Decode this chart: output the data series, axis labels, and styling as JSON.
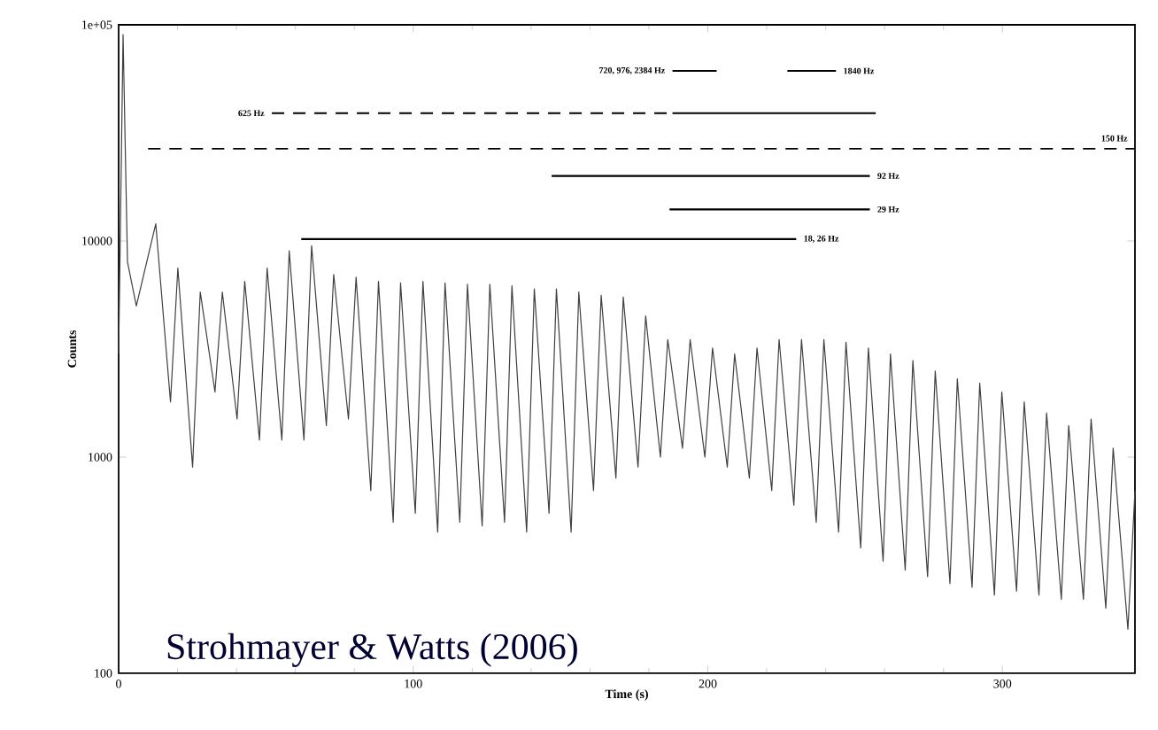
{
  "chart_data": {
    "type": "line",
    "xlabel": "Time (s)",
    "ylabel": "Counts",
    "log": "y",
    "xlim": [
      0,
      345
    ],
    "xticks": [
      0,
      100,
      200,
      300
    ],
    "ylim": [
      100,
      100000
    ],
    "yticks": [
      100,
      1000,
      10000,
      {
        "value": 100000,
        "label": "1e+05"
      }
    ],
    "series": [
      {
        "color": "#404040",
        "line_style": "solid",
        "x": [
          0,
          1.5,
          3,
          6,
          12.6,
          17.6,
          20.1,
          25.1,
          27.7,
          32.7,
          35.2,
          40.2,
          42.8,
          47.8,
          50.4,
          55.4,
          57.9,
          62.9,
          65.5,
          70.5,
          73.0,
          78.0,
          80.6,
          85.6,
          88.2,
          93.2,
          95.7,
          100.7,
          103.3,
          108.3,
          110.8,
          115.8,
          118.4,
          123.4,
          126.0,
          131.0,
          133.5,
          138.5,
          141.1,
          146.1,
          148.6,
          153.6,
          156.2,
          161.2,
          163.8,
          168.8,
          171.3,
          176.3,
          178.9,
          183.9,
          186.4,
          191.4,
          194.0,
          199.0,
          201.6,
          206.6,
          209.1,
          214.1,
          216.7,
          221.7,
          224.2,
          229.2,
          231.8,
          236.8,
          239.4,
          244.4,
          246.9,
          251.9,
          254.5,
          259.5,
          262.0,
          267.0,
          269.6,
          274.6,
          277.2,
          282.2,
          284.7,
          289.7,
          292.3,
          297.3,
          299.8,
          304.8,
          307.4,
          312.4,
          315.0,
          320.0,
          322.5,
          327.5,
          330.1,
          335.1,
          337.6,
          342.6,
          345
        ],
        "values": [
          3000,
          90000,
          8000,
          5000,
          12000,
          1800,
          7500,
          900,
          5800,
          2000,
          5800,
          1500,
          6500,
          1200,
          7500,
          1200,
          9000,
          1200,
          9500,
          1400,
          7000,
          1500,
          6800,
          700,
          6500,
          500,
          6400,
          550,
          6500,
          450,
          6400,
          500,
          6300,
          480,
          6300,
          500,
          6200,
          450,
          6000,
          550,
          6000,
          450,
          5800,
          700,
          5600,
          800,
          5500,
          900,
          4500,
          1000,
          3500,
          1100,
          3500,
          1000,
          3200,
          900,
          3000,
          800,
          3200,
          700,
          3500,
          600,
          3500,
          500,
          3500,
          450,
          3400,
          380,
          3200,
          330,
          3000,
          300,
          2800,
          280,
          2500,
          260,
          2300,
          250,
          2200,
          230,
          2000,
          240,
          1800,
          230,
          1600,
          220,
          1400,
          220,
          1500,
          200,
          1100,
          160,
          700
        ]
      },
      {
        "color": "#000000",
        "line_style": "solid",
        "x": [
          188,
          203
        ],
        "values": [
          61200,
          61200
        ]
      },
      {
        "color": "#000000",
        "line_style": "solid",
        "x": [
          227,
          243.5
        ],
        "values": [
          61200,
          61200
        ]
      },
      {
        "color": "#000000",
        "line_style": "dashed",
        "x": [
          52,
          188
        ],
        "values": [
          39000,
          39000
        ]
      },
      {
        "color": "#000000",
        "line_style": "solid",
        "x": [
          188,
          257
        ],
        "values": [
          39000,
          39000
        ]
      },
      {
        "color": "#000000",
        "line_style": "dashed",
        "x": [
          10,
          345
        ],
        "values": [
          26700,
          26700
        ]
      },
      {
        "color": "#000000",
        "line_style": "solid",
        "x": [
          147,
          255
        ],
        "values": [
          20000,
          20000
        ]
      },
      {
        "color": "#000000",
        "line_style": "solid",
        "x": [
          187,
          255
        ],
        "values": [
          14000,
          14000
        ]
      },
      {
        "color": "#000000",
        "line_style": "solid",
        "x": [
          62,
          230
        ],
        "values": [
          10200,
          10200
        ]
      }
    ],
    "annotations": [
      {
        "text": "720, 976, 2384 Hz",
        "x": 188,
        "y": 61200
      },
      {
        "text": "1840 Hz",
        "x": 243.5,
        "y": 61200
      },
      {
        "text": "625 Hz",
        "x": 52,
        "y": 39000
      },
      {
        "text": "150 Hz",
        "x": 345,
        "y": 26700
      },
      {
        "text": "92 Hz",
        "x": 255,
        "y": 20000
      },
      {
        "text": "29 Hz",
        "x": 255,
        "y": 14000
      },
      {
        "text": "18, 26 Hz",
        "x": 230,
        "y": 10200
      },
      "Strohmayer & Watts (2006)"
    ]
  }
}
